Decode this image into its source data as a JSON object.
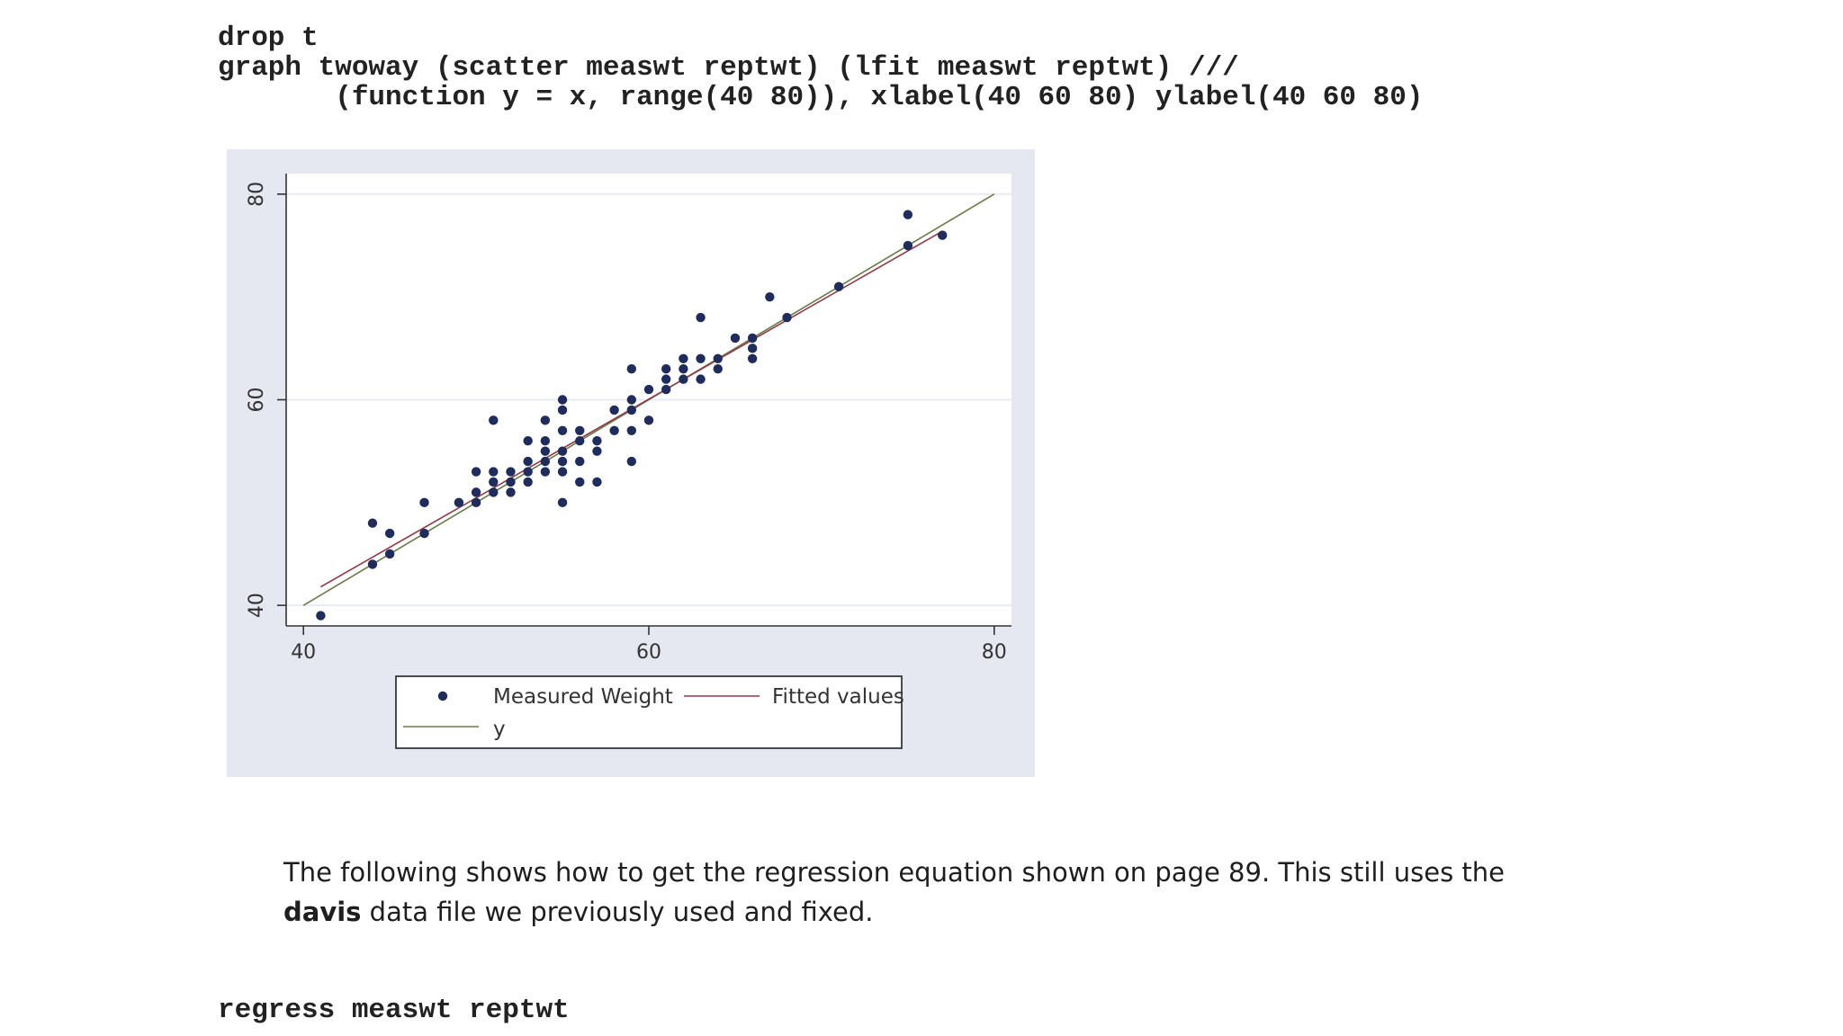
{
  "code_top": [
    "drop t",
    "graph twoway (scatter measwt reptwt) (lfit measwt reptwt) ///",
    "       (function y = x, range(40 80)), xlabel(40 60 80) ylabel(40 60 80)"
  ],
  "code_bottom": "regress measwt reptwt",
  "paragraph": {
    "part1": "The following shows how to get the regression equation shown on page 89. This still uses the",
    "bold": "davis",
    "part2": " data file we previously used and fixed."
  },
  "colors": {
    "panel_bg": "#e6e8f1",
    "plot_bg": "#ffffff",
    "points": "#1f2c5c",
    "fitted": "#8f3a48",
    "y_line": "#6b7a4a",
    "grid": "#e8ebf2"
  },
  "chart_data": {
    "type": "scatter",
    "title": "",
    "xlabel": "",
    "ylabel": "",
    "xlim": [
      39,
      81
    ],
    "ylim": [
      38,
      82
    ],
    "x_ticks": [
      40,
      60,
      80
    ],
    "y_ticks": [
      40,
      60,
      80
    ],
    "grid": "horizontal",
    "legend_position": "bottom",
    "legend": [
      "Measured Weight",
      "Fitted values",
      "y"
    ],
    "series": [
      {
        "name": "Measured Weight",
        "type": "scatter",
        "points": [
          [
            41,
            39
          ],
          [
            44,
            44
          ],
          [
            44,
            48
          ],
          [
            45,
            45
          ],
          [
            45,
            47
          ],
          [
            47,
            47
          ],
          [
            47,
            50
          ],
          [
            49,
            50
          ],
          [
            50,
            50
          ],
          [
            50,
            51
          ],
          [
            50,
            53
          ],
          [
            51,
            51
          ],
          [
            51,
            52
          ],
          [
            51,
            53
          ],
          [
            51,
            58
          ],
          [
            52,
            51
          ],
          [
            52,
            52
          ],
          [
            52,
            53
          ],
          [
            53,
            52
          ],
          [
            53,
            53
          ],
          [
            53,
            54
          ],
          [
            53,
            56
          ],
          [
            54,
            53
          ],
          [
            54,
            54
          ],
          [
            54,
            55
          ],
          [
            54,
            56
          ],
          [
            54,
            58
          ],
          [
            55,
            50
          ],
          [
            55,
            53
          ],
          [
            55,
            54
          ],
          [
            55,
            55
          ],
          [
            55,
            57
          ],
          [
            55,
            59
          ],
          [
            55,
            60
          ],
          [
            56,
            52
          ],
          [
            56,
            54
          ],
          [
            56,
            56
          ],
          [
            56,
            57
          ],
          [
            57,
            52
          ],
          [
            57,
            55
          ],
          [
            57,
            56
          ],
          [
            58,
            57
          ],
          [
            58,
            59
          ],
          [
            59,
            54
          ],
          [
            59,
            57
          ],
          [
            59,
            59
          ],
          [
            59,
            60
          ],
          [
            59,
            63
          ],
          [
            60,
            58
          ],
          [
            60,
            61
          ],
          [
            61,
            61
          ],
          [
            61,
            62
          ],
          [
            61,
            63
          ],
          [
            62,
            62
          ],
          [
            62,
            63
          ],
          [
            62,
            64
          ],
          [
            63,
            62
          ],
          [
            63,
            64
          ],
          [
            63,
            68
          ],
          [
            64,
            63
          ],
          [
            64,
            64
          ],
          [
            65,
            66
          ],
          [
            66,
            64
          ],
          [
            66,
            65
          ],
          [
            66,
            66
          ],
          [
            67,
            70
          ],
          [
            68,
            68
          ],
          [
            71,
            71
          ],
          [
            75,
            75
          ],
          [
            75,
            78
          ],
          [
            77,
            76
          ]
        ]
      },
      {
        "name": "Fitted values",
        "type": "line",
        "from": [
          41,
          41.8
        ],
        "to": [
          77,
          76.4
        ]
      },
      {
        "name": "y",
        "type": "line",
        "from": [
          40,
          40
        ],
        "to": [
          80,
          80
        ]
      }
    ]
  }
}
